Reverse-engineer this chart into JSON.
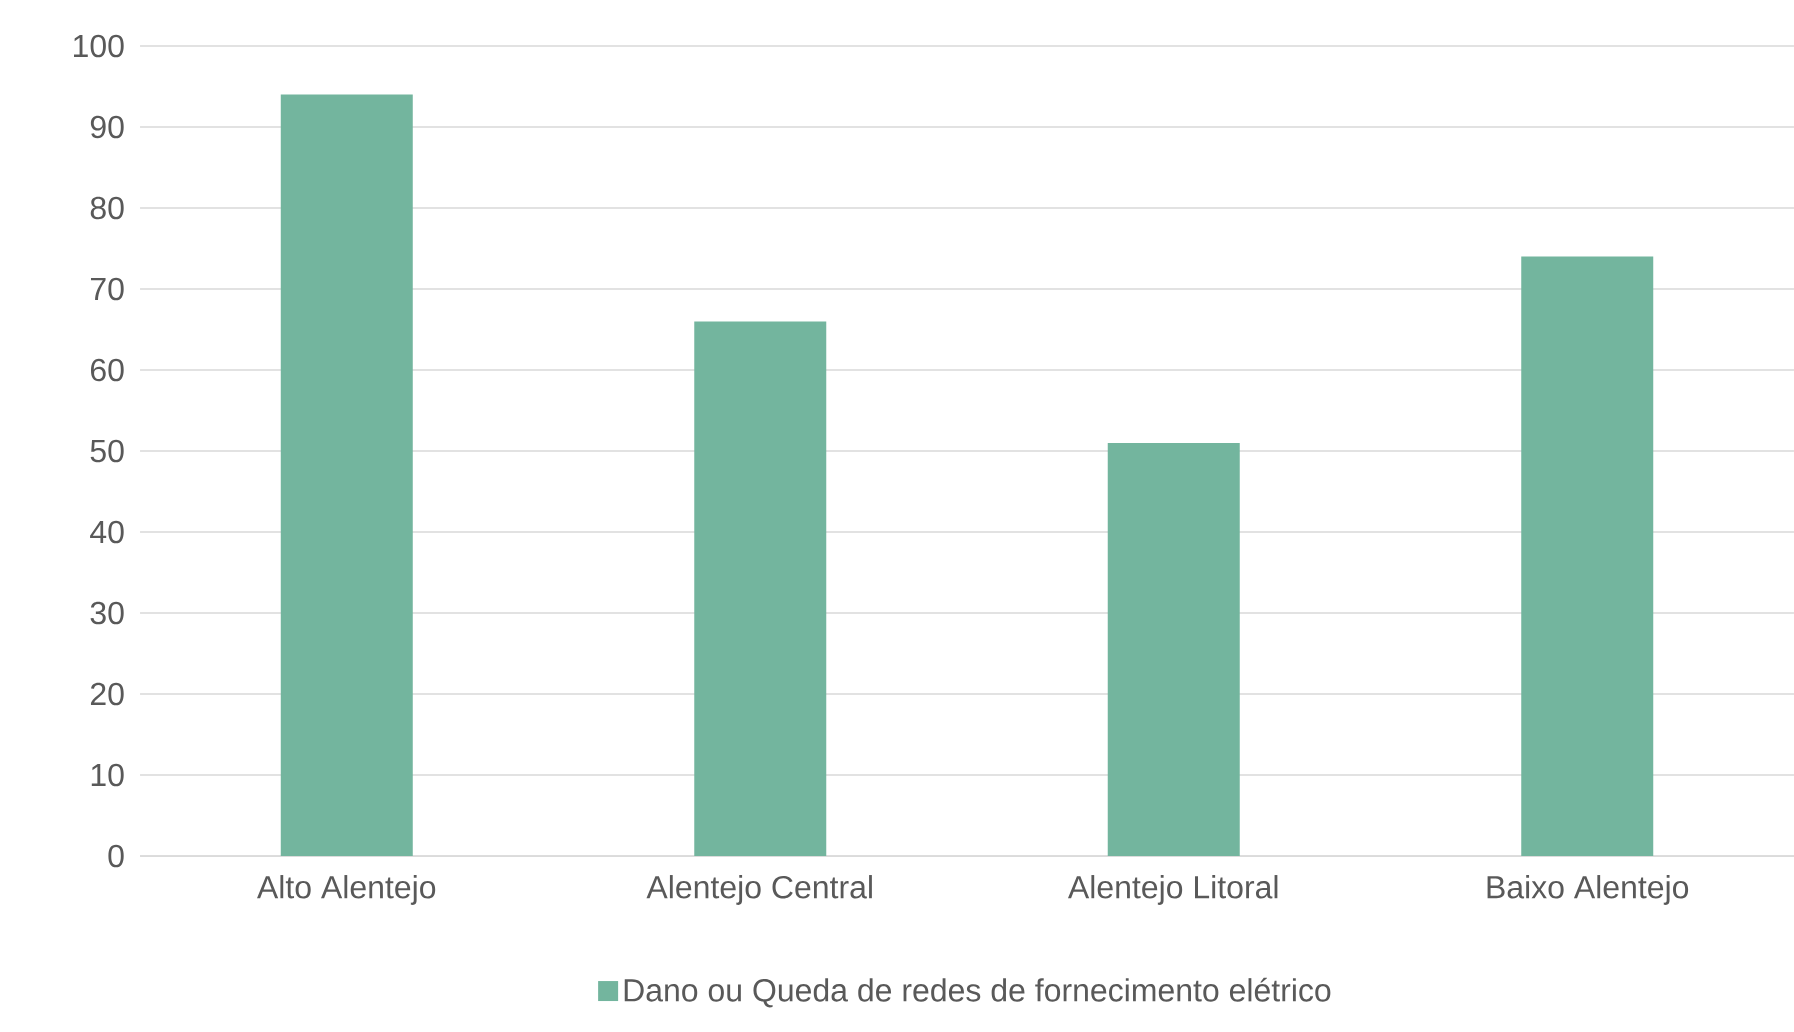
{
  "chart_data": {
    "type": "bar",
    "categories": [
      "Alto Alentejo",
      "Alentejo Central",
      "Alentejo Litoral",
      "Baixo Alentejo"
    ],
    "series": [
      {
        "name": "Dano ou Queda de redes de fornecimento elétrico",
        "color": "#73b59e",
        "values": [
          94,
          66,
          51,
          74
        ]
      }
    ],
    "ylim": [
      0,
      100
    ],
    "yticks": [
      0,
      10,
      20,
      30,
      40,
      50,
      60,
      70,
      80,
      90,
      100
    ],
    "grid": "y",
    "legend": "bottom"
  }
}
